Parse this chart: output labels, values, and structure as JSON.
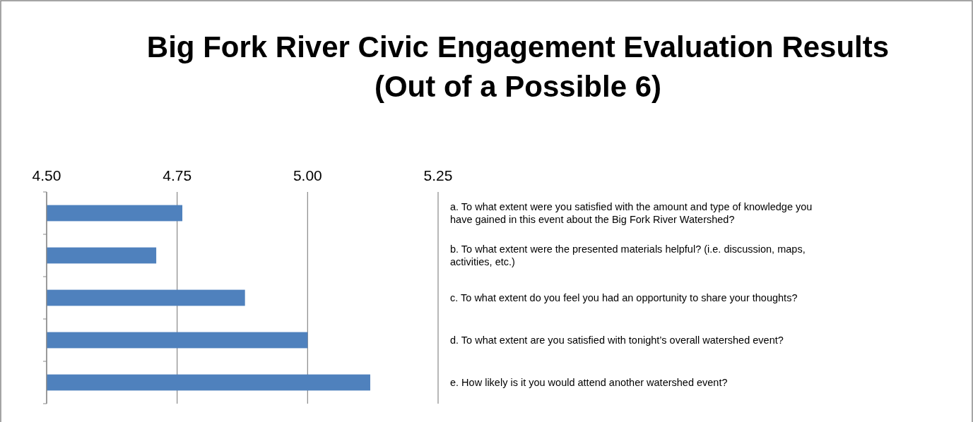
{
  "chart_data": {
    "type": "bar",
    "orientation": "horizontal",
    "title": "Big Fork River Civic Engagement Evaluation Results\n(Out of a Possible 6)",
    "categories": [
      "a.  To what extent were you satisfied with the amount and type of knowledge you have gained in this event about the Big Fork River Watershed?",
      "b. To what extent were the presented materials helpful? (i.e. discussion, maps, activities, etc.)",
      "c. To what extent do you feel you had an opportunity to share your thoughts?",
      "d. To what extent are you satisfied with tonight’s overall watershed event?",
      "e. How likely is it you would attend another watershed event?"
    ],
    "values": [
      4.76,
      4.71,
      4.88,
      5.0,
      5.12
    ],
    "color": "#4f81bd",
    "xlim": [
      4.5,
      5.25
    ],
    "xticks": [
      {
        "value": 4.5,
        "label": "4.50"
      },
      {
        "value": 4.75,
        "label": "4.75"
      },
      {
        "value": 5.0,
        "label": "5.00"
      },
      {
        "value": 5.25,
        "label": "5.25"
      }
    ],
    "grid": "x"
  }
}
